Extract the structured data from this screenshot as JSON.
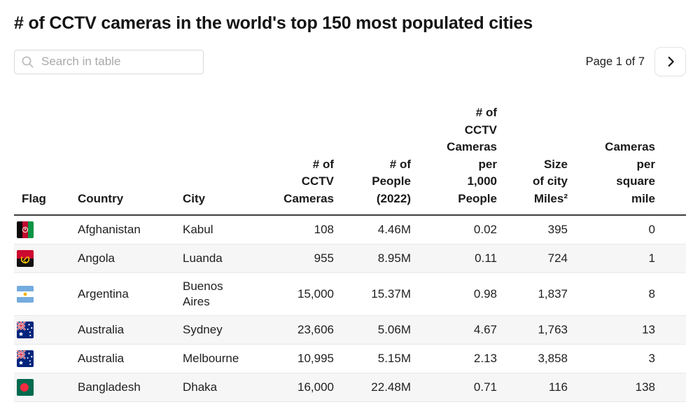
{
  "title": "# of CCTV cameras in the world's top 150 most populated cities",
  "toolbar": {
    "search_placeholder": "Search in table",
    "search_icon": "magnifier-icon",
    "pagination": {
      "label": "Page 1 of 7",
      "page": 1,
      "total_pages": 7,
      "next_icon": "chevron-right-icon"
    }
  },
  "table": {
    "columns": [
      {
        "key": "flag",
        "label": "Flag"
      },
      {
        "key": "country",
        "label": "Country"
      },
      {
        "key": "city",
        "label": "City"
      },
      {
        "key": "cameras",
        "label": "# of\nCCTV\nCameras"
      },
      {
        "key": "people",
        "label": "# of\nPeople\n(2022)"
      },
      {
        "key": "per_1000",
        "label": "# of\nCCTV\nCameras\nper\n1,000\nPeople"
      },
      {
        "key": "city_size",
        "label": "Size\nof city\nMiles²"
      },
      {
        "key": "per_sq_mile",
        "label": "Cameras\nper\nsquare\nmile"
      }
    ],
    "rows": [
      {
        "flag": "afghanistan",
        "country": "Afghanistan",
        "city": "Kabul",
        "cameras": "108",
        "people": "4.46M",
        "per_1000": "0.02",
        "city_size": "395",
        "per_sq_mile": "0"
      },
      {
        "flag": "angola",
        "country": "Angola",
        "city": "Luanda",
        "cameras": "955",
        "people": "8.95M",
        "per_1000": "0.11",
        "city_size": "724",
        "per_sq_mile": "1"
      },
      {
        "flag": "argentina",
        "country": "Argentina",
        "city": "Buenos Aires",
        "cameras": "15,000",
        "people": "15.37M",
        "per_1000": "0.98",
        "city_size": "1,837",
        "per_sq_mile": "8"
      },
      {
        "flag": "australia",
        "country": "Australia",
        "city": "Sydney",
        "cameras": "23,606",
        "people": "5.06M",
        "per_1000": "4.67",
        "city_size": "1,763",
        "per_sq_mile": "13"
      },
      {
        "flag": "australia",
        "country": "Australia",
        "city": "Melbourne",
        "cameras": "10,995",
        "people": "5.15M",
        "per_1000": "2.13",
        "city_size": "3,858",
        "per_sq_mile": "3"
      },
      {
        "flag": "bangladesh",
        "country": "Bangladesh",
        "city": "Dhaka",
        "cameras": "16,000",
        "people": "22.48M",
        "per_1000": "0.71",
        "city_size": "116",
        "per_sq_mile": "138"
      }
    ]
  },
  "colors": {
    "header_border": "#3d3d3d",
    "row_alt": "#f6f6f6",
    "row_separator": "#e9e9e9"
  }
}
